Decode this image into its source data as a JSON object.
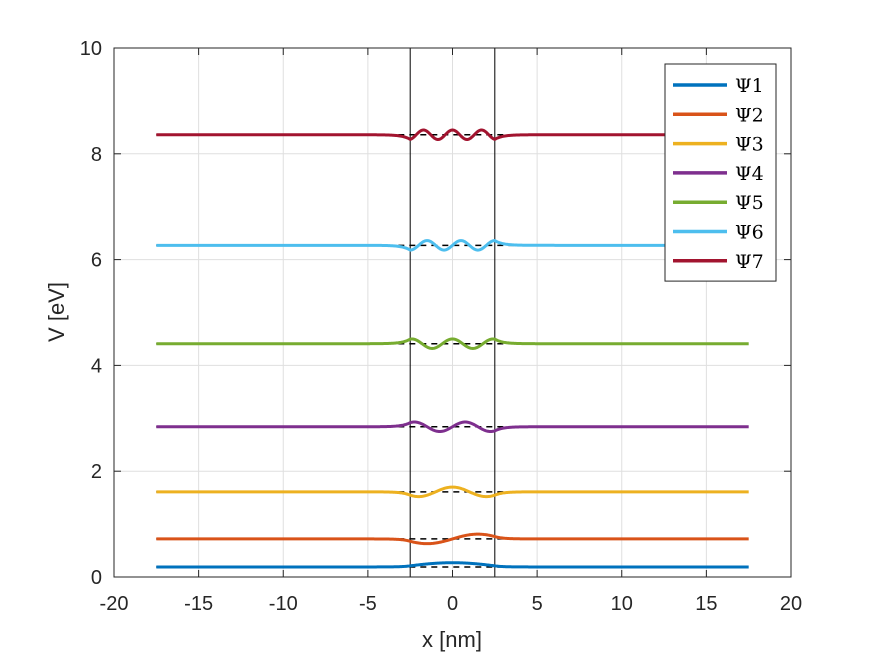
{
  "chart_data": {
    "type": "line",
    "xlabel": "x [nm]",
    "ylabel": "V [eV]",
    "xlim": [
      -20,
      20
    ],
    "ylim": [
      0,
      10
    ],
    "x_ticks": [
      -20,
      -15,
      -10,
      -5,
      0,
      5,
      10,
      15,
      20
    ],
    "y_ticks": [
      0,
      2,
      4,
      6,
      8,
      10
    ],
    "grid": true,
    "legend_position": "top-right",
    "well": {
      "x_range": [
        -2.5,
        2.5
      ],
      "barrier_v": 10,
      "bottom_v": 0,
      "outer_x_range": [
        -17.5,
        17.5
      ]
    },
    "series": [
      {
        "name": "Ψ1",
        "color": "#0072BD",
        "energy": 0.19,
        "amplitude": 0.08,
        "n": 1,
        "x_range": [
          -17.5,
          17.5
        ]
      },
      {
        "name": "Ψ2",
        "color": "#D95319",
        "energy": 0.72,
        "amplitude": 0.09,
        "n": 2,
        "x_range": [
          -17.5,
          17.5
        ]
      },
      {
        "name": "Ψ3",
        "color": "#EDB120",
        "energy": 1.61,
        "amplitude": 0.09,
        "n": 3,
        "x_range": [
          -17.5,
          17.5
        ]
      },
      {
        "name": "Ψ4",
        "color": "#7E2F8E",
        "energy": 2.84,
        "amplitude": 0.09,
        "n": 4,
        "x_range": [
          -17.5,
          17.5
        ]
      },
      {
        "name": "Ψ5",
        "color": "#77AC30",
        "energy": 4.41,
        "amplitude": 0.09,
        "n": 5,
        "x_range": [
          -17.5,
          17.5
        ]
      },
      {
        "name": "Ψ6",
        "color": "#4DBEEE",
        "energy": 6.27,
        "amplitude": 0.09,
        "n": 6,
        "x_range": [
          -17.5,
          17.5
        ]
      },
      {
        "name": "Ψ7",
        "color": "#A2142F",
        "energy": 8.36,
        "amplitude": 0.09,
        "n": 7,
        "x_range": [
          -17.5,
          17.5
        ]
      }
    ]
  }
}
